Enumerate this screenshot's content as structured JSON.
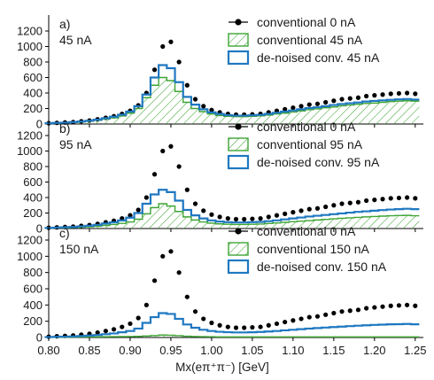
{
  "chart_data": {
    "type": "histogram",
    "xlabel": "Mx(eπ⁺π⁻) [GeV]",
    "xlim": [
      0.8,
      1.26
    ],
    "x_ticks": [
      "0.80",
      "0.85",
      "0.90",
      "0.95",
      "1.00",
      "1.05",
      "1.10",
      "1.15",
      "1.20",
      "1.25"
    ],
    "ylim": [
      0,
      1200
    ],
    "y_ticks": [
      "0",
      "200",
      "400",
      "600",
      "800",
      "1000",
      "1200"
    ],
    "colors": {
      "reference": "#000000",
      "conventional": "#3fa535",
      "denoised": "#1f78c1"
    },
    "x": [
      0.8,
      0.81,
      0.82,
      0.83,
      0.84,
      0.85,
      0.86,
      0.87,
      0.88,
      0.89,
      0.9,
      0.91,
      0.92,
      0.93,
      0.94,
      0.95,
      0.96,
      0.97,
      0.98,
      0.99,
      1.0,
      1.01,
      1.02,
      1.03,
      1.04,
      1.05,
      1.06,
      1.07,
      1.08,
      1.09,
      1.1,
      1.11,
      1.12,
      1.13,
      1.14,
      1.15,
      1.16,
      1.17,
      1.18,
      1.19,
      1.2,
      1.21,
      1.22,
      1.23,
      1.24,
      1.25
    ],
    "panels": [
      {
        "label_line1": "a)",
        "label_line2": "45 nA",
        "series": [
          {
            "name": "conventional 0 nA",
            "style": "dots",
            "values": [
              10,
              15,
              20,
              25,
              35,
              45,
              60,
              80,
              100,
              130,
              170,
              240,
              400,
              700,
              1000,
              1060,
              800,
              500,
              320,
              230,
              180,
              150,
              130,
              120,
              120,
              125,
              130,
              150,
              170,
              190,
              210,
              230,
              250,
              260,
              280,
              300,
              320,
              330,
              340,
              360,
              370,
              380,
              390,
              395,
              400,
              390
            ]
          },
          {
            "name": "conventional 45 nA",
            "style": "hatched",
            "values": [
              8,
              12,
              16,
              20,
              28,
              36,
              48,
              64,
              80,
              104,
              140,
              200,
              340,
              500,
              600,
              560,
              420,
              280,
              200,
              160,
              130,
              110,
              100,
              95,
              95,
              100,
              105,
              115,
              130,
              140,
              155,
              170,
              185,
              195,
              210,
              220,
              235,
              245,
              255,
              265,
              270,
              280,
              290,
              295,
              300,
              295
            ]
          },
          {
            "name": "de-noised conv. 45 nA",
            "style": "step",
            "values": [
              10,
              14,
              18,
              24,
              32,
              42,
              56,
              74,
              94,
              120,
              160,
              230,
              380,
              600,
              760,
              720,
              540,
              350,
              250,
              190,
              150,
              130,
              115,
              108,
              108,
              112,
              118,
              130,
              145,
              160,
              175,
              190,
              205,
              215,
              230,
              245,
              258,
              268,
              278,
              290,
              298,
              305,
              312,
              318,
              322,
              315
            ]
          }
        ]
      },
      {
        "label_line1": "b)",
        "label_line2": "95 nA",
        "series": [
          {
            "name": "conventional 0 nA",
            "style": "dots",
            "values": [
              10,
              15,
              20,
              25,
              35,
              45,
              60,
              80,
              100,
              130,
              170,
              240,
              400,
              700,
              1000,
              1060,
              800,
              500,
              320,
              230,
              180,
              150,
              130,
              120,
              120,
              125,
              130,
              150,
              170,
              190,
              210,
              230,
              250,
              260,
              280,
              300,
              320,
              330,
              340,
              360,
              370,
              380,
              390,
              395,
              400,
              390
            ]
          },
          {
            "name": "conventional 95 nA",
            "style": "hatched",
            "values": [
              5,
              8,
              10,
              13,
              18,
              23,
              30,
              40,
              52,
              66,
              85,
              120,
              190,
              270,
              320,
              290,
              220,
              150,
              110,
              85,
              70,
              60,
              55,
              52,
              52,
              55,
              58,
              65,
              72,
              80,
              88,
              95,
              102,
              110,
              118,
              125,
              132,
              138,
              144,
              150,
              155,
              160,
              165,
              168,
              170,
              165
            ]
          },
          {
            "name": "de-noised conv. 95 nA",
            "style": "step",
            "values": [
              8,
              12,
              16,
              20,
              28,
              36,
              48,
              64,
              80,
              104,
              140,
              200,
              320,
              440,
              500,
              470,
              360,
              240,
              170,
              130,
              105,
              90,
              82,
              78,
              78,
              82,
              86,
              95,
              105,
              118,
              130,
              142,
              155,
              165,
              175,
              185,
              195,
              205,
              215,
              222,
              230,
              238,
              245,
              250,
              255,
              250
            ]
          }
        ]
      },
      {
        "label_line1": "c)",
        "label_line2": "150 nA",
        "series": [
          {
            "name": "conventional 0 nA",
            "style": "dots",
            "values": [
              10,
              15,
              20,
              25,
              35,
              45,
              60,
              80,
              100,
              130,
              170,
              240,
              400,
              700,
              1000,
              1060,
              800,
              500,
              320,
              230,
              180,
              150,
              130,
              120,
              120,
              125,
              130,
              150,
              170,
              190,
              210,
              230,
              250,
              260,
              280,
              300,
              320,
              330,
              340,
              360,
              370,
              380,
              390,
              395,
              400,
              390
            ]
          },
          {
            "name": "conventional 150 nA",
            "style": "hatched",
            "values": [
              2,
              3,
              4,
              5,
              6,
              7,
              8,
              9,
              10,
              11,
              12,
              14,
              18,
              24,
              30,
              28,
              22,
              16,
              12,
              10,
              9,
              8,
              8,
              8,
              8,
              8,
              8,
              8,
              8,
              8,
              8,
              8,
              8,
              8,
              8,
              8,
              8,
              8,
              8,
              8,
              8,
              8,
              8,
              8,
              8,
              8
            ]
          },
          {
            "name": "de-noised conv. 150 nA",
            "style": "step",
            "values": [
              5,
              8,
              10,
              13,
              18,
              23,
              30,
              40,
              50,
              64,
              80,
              110,
              180,
              250,
              300,
              290,
              230,
              160,
              120,
              95,
              80,
              70,
              65,
              62,
              62,
              64,
              68,
              74,
              80,
              88,
              95,
              102,
              110,
              116,
              122,
              128,
              134,
              140,
              145,
              150,
              155,
              158,
              162,
              164,
              166,
              162
            ]
          }
        ]
      }
    ]
  }
}
